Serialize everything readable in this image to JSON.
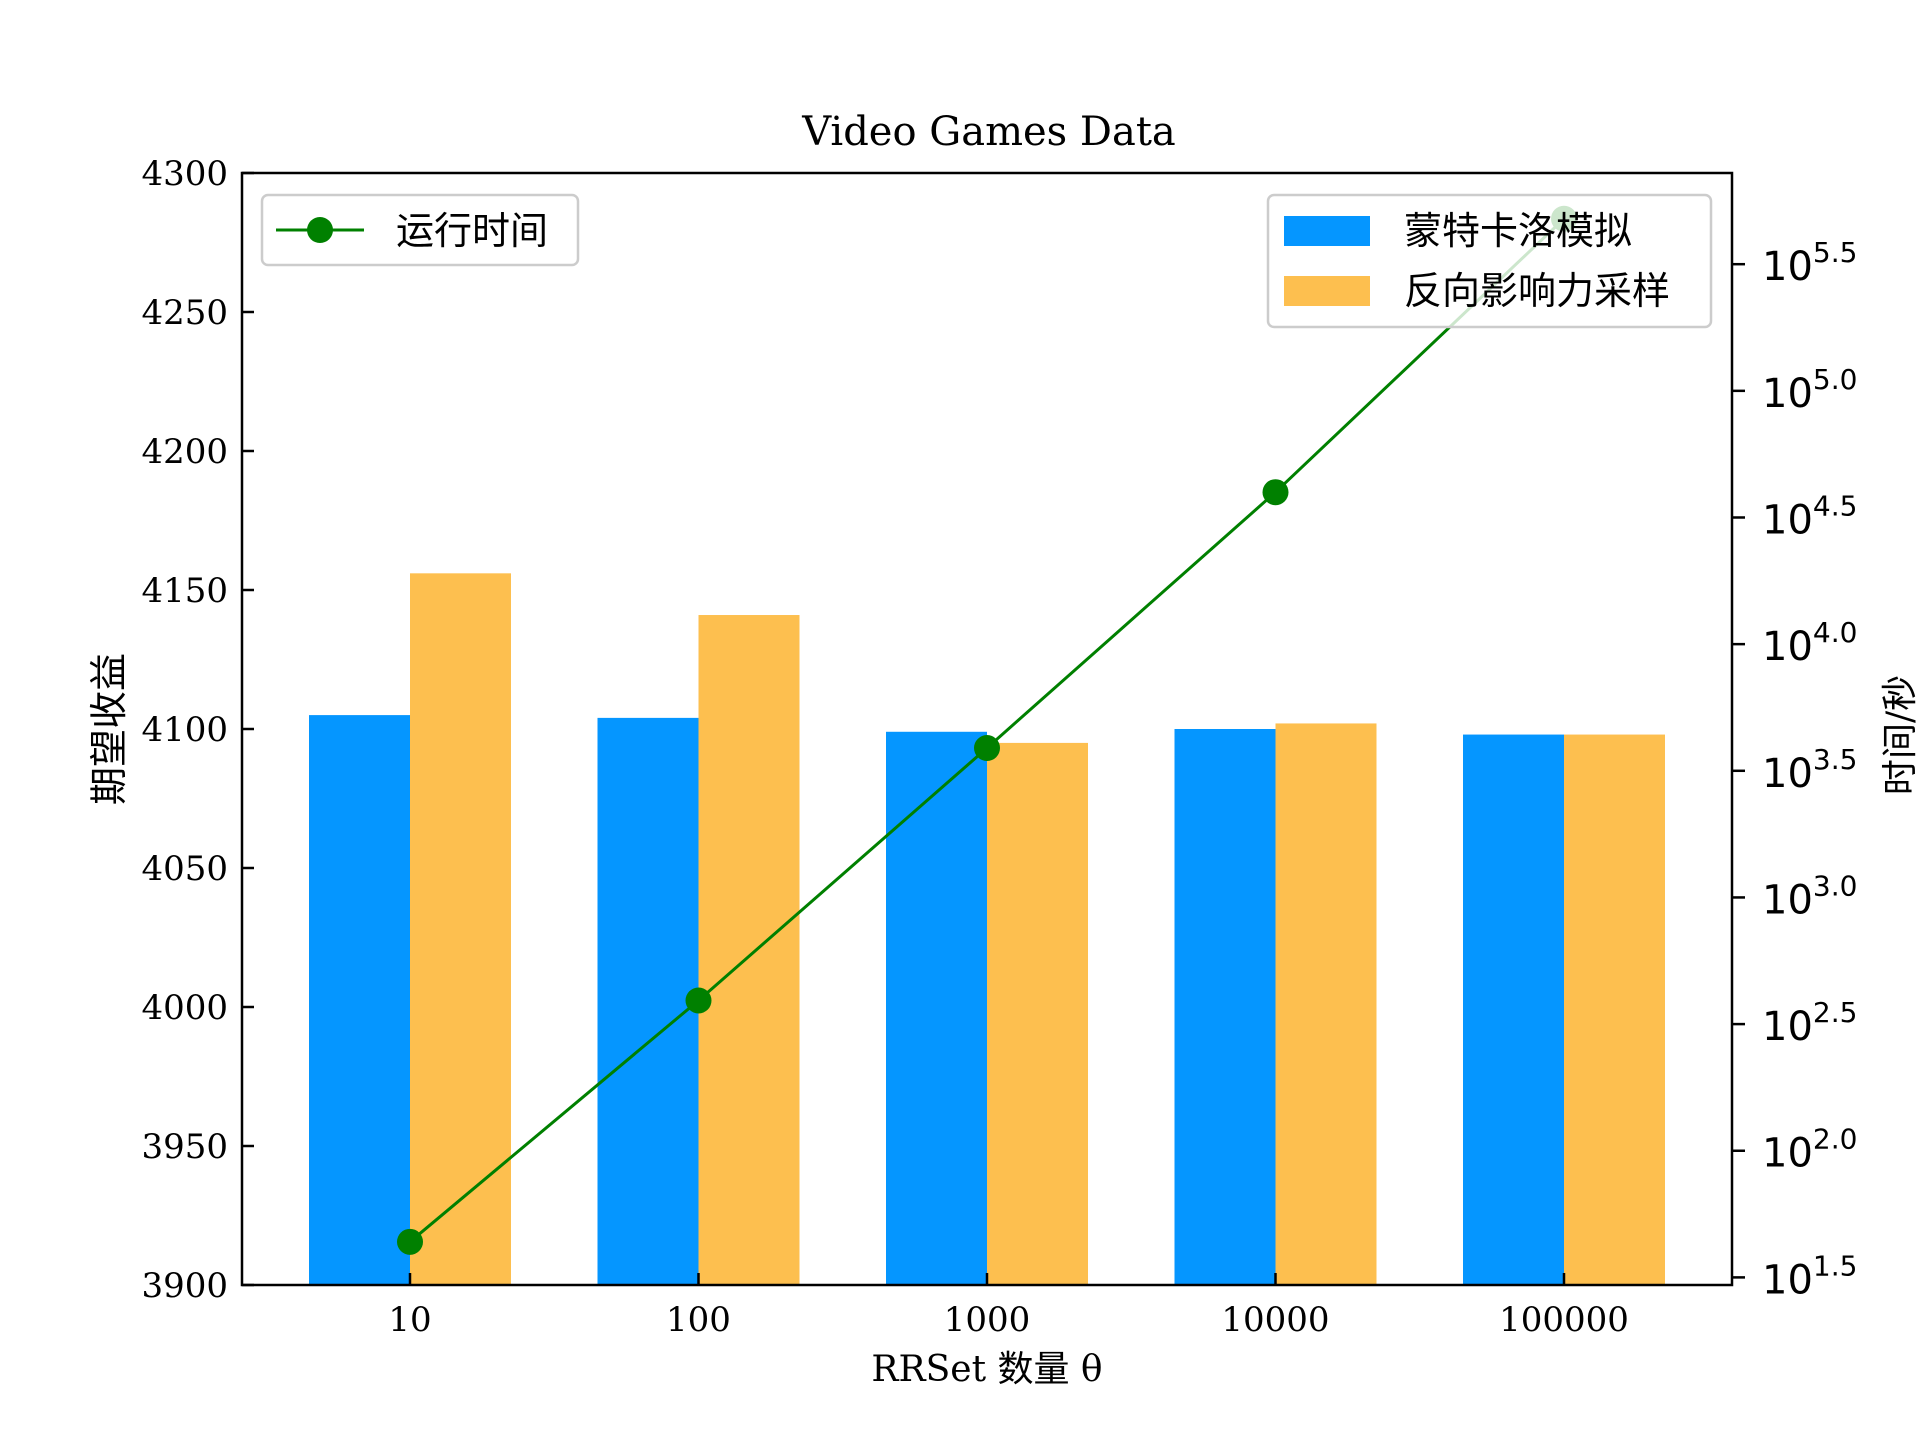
{
  "chart_data": {
    "type": "bar",
    "title": "Video Games Data",
    "xlabel": "RRSet 数量 θ",
    "ylabel": "期望收益",
    "y2label": "时间/秒",
    "categories": [
      "10",
      "100",
      "1000",
      "10000",
      "100000"
    ],
    "ylim": [
      3900,
      4300
    ],
    "yticks": [
      "3900",
      "3950",
      "4000",
      "4050",
      "4100",
      "4150",
      "4200",
      "4250",
      "4300"
    ],
    "series": [
      {
        "name": "蒙特卡洛模拟",
        "type": "bar",
        "color": "#0596FF",
        "values": [
          4105,
          4104,
          4099,
          4100,
          4098
        ]
      },
      {
        "name": "反向影响力采样",
        "type": "bar",
        "color": "#FDBF4F",
        "values": [
          4156,
          4141,
          4095,
          4102,
          4098
        ]
      },
      {
        "name": "运行时间",
        "type": "line",
        "axis": "right",
        "color": "#008000",
        "marker": "circle",
        "values": [
          43.7,
          392,
          3890,
          39800,
          478000
        ]
      }
    ],
    "y2_scale": "log",
    "y2lim_log10": [
      1.47,
      5.86
    ],
    "y2ticks": [
      {
        "base": "10",
        "exp": "1.5",
        "log10": 1.5
      },
      {
        "base": "10",
        "exp": "2.0",
        "log10": 2.0
      },
      {
        "base": "10",
        "exp": "2.5",
        "log10": 2.5
      },
      {
        "base": "10",
        "exp": "3.0",
        "log10": 3.0
      },
      {
        "base": "10",
        "exp": "3.5",
        "log10": 3.5
      },
      {
        "base": "10",
        "exp": "4.0",
        "log10": 4.0
      },
      {
        "base": "10",
        "exp": "4.5",
        "log10": 4.5
      },
      {
        "base": "10",
        "exp": "5.0",
        "log10": 5.0
      },
      {
        "base": "10",
        "exp": "5.5",
        "log10": 5.5
      }
    ],
    "legend_left": {
      "placement": "upper-left",
      "entries": [
        "运行时间"
      ]
    },
    "legend_right": {
      "placement": "upper-right",
      "entries": [
        "蒙特卡洛模拟",
        "反向影响力采样"
      ]
    },
    "grid": false
  }
}
